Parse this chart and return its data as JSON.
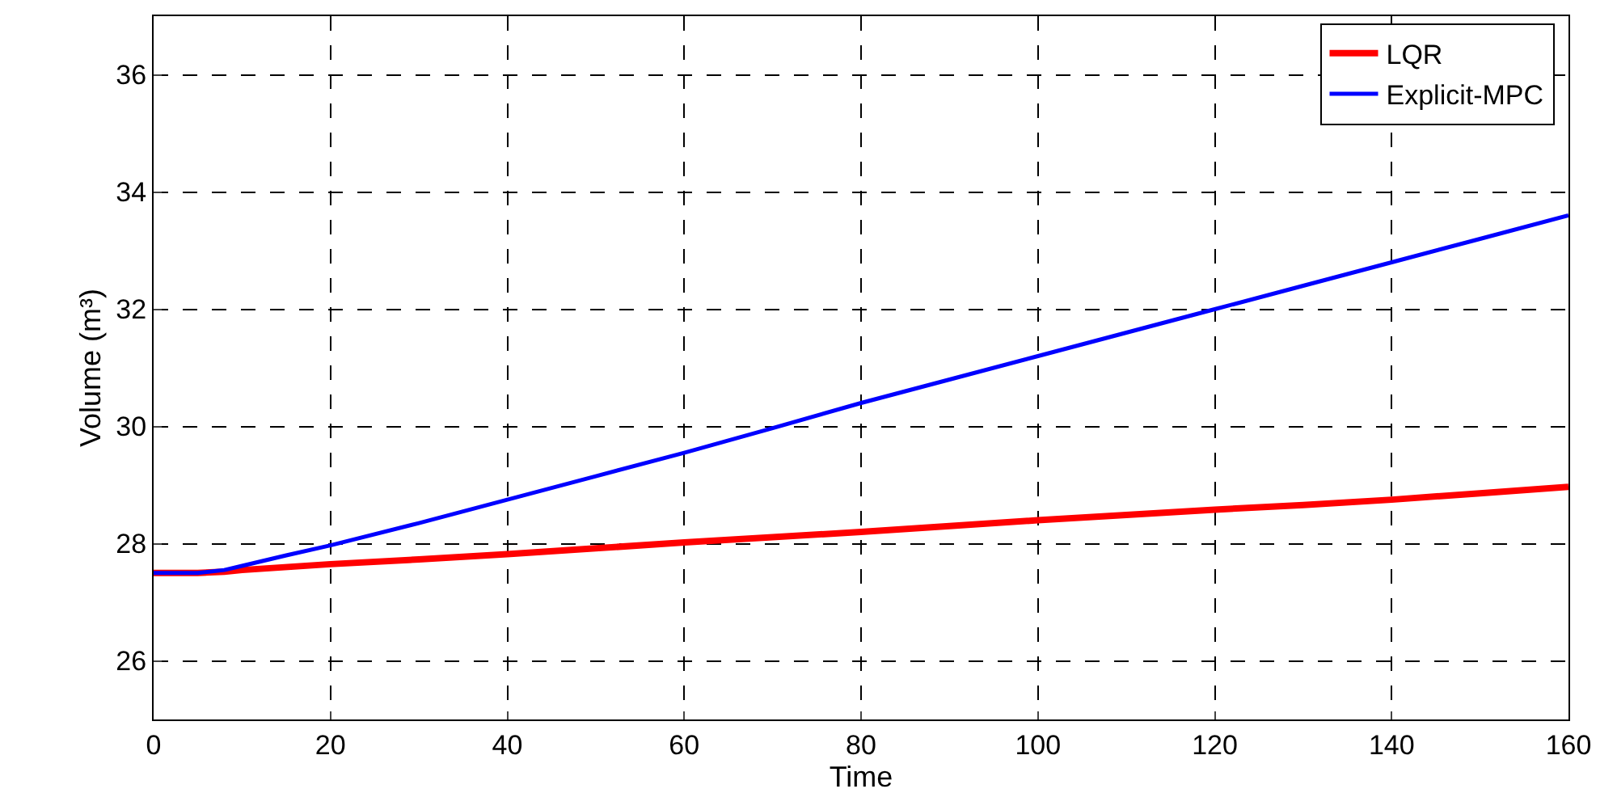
{
  "chart_data": {
    "type": "line",
    "xlabel": "Time",
    "ylabel": "Volume (m³)",
    "series": [
      {
        "name": "LQR",
        "color": "#ff0000",
        "x": [
          0,
          5,
          8,
          10,
          20,
          30,
          40,
          50,
          60,
          70,
          80,
          90,
          100,
          110,
          120,
          130,
          140,
          150,
          160
        ],
        "values": [
          27.5,
          27.5,
          27.52,
          27.55,
          27.65,
          27.73,
          27.82,
          27.92,
          28.02,
          28.11,
          28.2,
          28.3,
          28.4,
          28.49,
          28.58,
          28.66,
          28.75,
          28.86,
          28.97
        ]
      },
      {
        "name": "Explicit-MPC",
        "color": "#0000ff",
        "x": [
          0,
          5,
          8,
          10,
          15,
          20,
          30,
          40,
          50,
          60,
          70,
          80,
          90,
          100,
          110,
          120,
          130,
          140,
          150,
          160
        ],
        "values": [
          27.5,
          27.5,
          27.55,
          27.62,
          27.8,
          27.97,
          28.35,
          28.75,
          29.15,
          29.55,
          29.97,
          30.4,
          30.8,
          31.2,
          31.6,
          32.0,
          32.4,
          32.8,
          33.2,
          33.6
        ]
      }
    ],
    "xlim": [
      0,
      160
    ],
    "xticks": [
      0,
      20,
      40,
      60,
      80,
      100,
      120,
      140,
      160
    ],
    "ylim": [
      25,
      37
    ],
    "yticks": [
      26,
      28,
      30,
      32,
      34,
      36
    ],
    "grid": true,
    "legend": "top right",
    "line_style": "solid"
  }
}
